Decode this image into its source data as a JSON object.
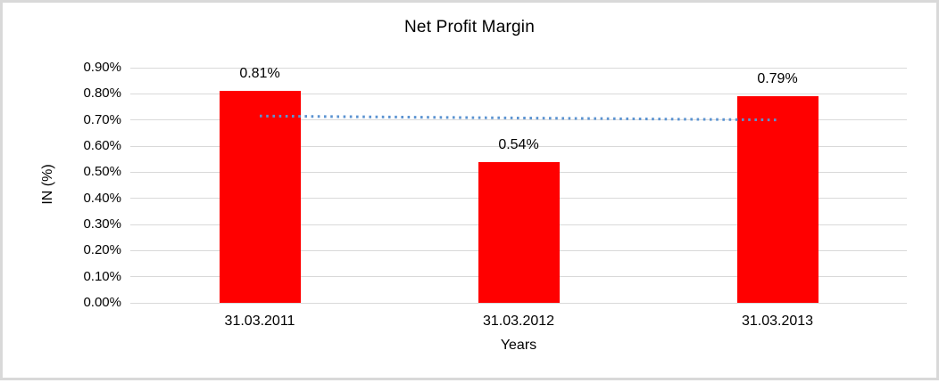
{
  "chart_data": {
    "type": "bar",
    "title": "Net Profit Margin",
    "xlabel": "Years",
    "ylabel": "IN (%)",
    "categories": [
      "31.03.2011",
      "31.03.2012",
      "31.03.2013"
    ],
    "series": [
      {
        "name": "Net Profit Margin",
        "values": [
          0.81,
          0.54,
          0.79
        ]
      }
    ],
    "data_labels": [
      "0.81%",
      "0.54%",
      "0.79%"
    ],
    "yticks": [
      {
        "value": 0.9,
        "label": "0.90%"
      },
      {
        "value": 0.8,
        "label": "0.80%"
      },
      {
        "value": 0.7,
        "label": "0.70%"
      },
      {
        "value": 0.6,
        "label": "0.60%"
      },
      {
        "value": 0.5,
        "label": "0.50%"
      },
      {
        "value": 0.4,
        "label": "0.40%"
      },
      {
        "value": 0.3,
        "label": "0.30%"
      },
      {
        "value": 0.2,
        "label": "0.20%"
      },
      {
        "value": 0.1,
        "label": "0.10%"
      },
      {
        "value": 0.0,
        "label": "0.00%"
      }
    ],
    "ylim": [
      0.0,
      0.9
    ],
    "grid": "horizontal",
    "legend": "none",
    "trendline": {
      "style": "dotted",
      "start_value": 0.715,
      "end_value": 0.7,
      "spans_categories": [
        0,
        2
      ]
    },
    "colors": {
      "bar": "#ff0000",
      "trendline": "#5b93d1",
      "gridline": "#d9d9d9",
      "frame_border": "#d9d9d9",
      "text": "#000000",
      "background": "#ffffff"
    }
  }
}
